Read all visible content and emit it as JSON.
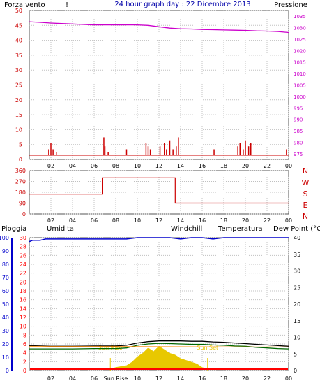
{
  "header": {
    "left_label": "Forza vento",
    "left_unit_mark": "!",
    "title": "24 hour graph day : 22 Dicembre 2013",
    "right_label": "Pressione"
  },
  "colors": {
    "wind": "#cc0000",
    "pressure": "#cc00cc",
    "direction": "#cc0000",
    "rain": "#ff0000",
    "humidity": "#0000cc",
    "windchill": "#ff8800",
    "temperature": "#000000",
    "dewpoint": "#006600",
    "sun": "#e8c800",
    "grid": "#c0c0c0",
    "border": "#555555",
    "axis_blue": "#0000cc"
  },
  "bottom_labels": {
    "rain": "Pioggia",
    "humidity": "Umidita",
    "windchill": "Windchill",
    "temperature": "Temperatura",
    "dewpoint": "Dew Point (°C"
  },
  "sun_labels": {
    "rise": "Sun Rise",
    "set": "Sun Set",
    "rise_axis": "Sun Rise"
  },
  "compass_labels": [
    "N",
    "W",
    "S",
    "E",
    "N"
  ],
  "chart_data": [
    {
      "type": "line",
      "name": "wind-pressure",
      "x_ticks": [
        "02",
        "04",
        "06",
        "08",
        "10",
        "12",
        "14",
        "16",
        "18",
        "20",
        "22",
        "00"
      ],
      "xlim": [
        0,
        24
      ],
      "y_left_ticks": [
        0,
        5,
        10,
        15,
        20,
        25,
        30,
        35,
        40,
        45,
        50
      ],
      "ylim_left": [
        0,
        50
      ],
      "y_right_ticks": [
        975,
        980,
        985,
        990,
        995,
        1000,
        1005,
        1010,
        1015,
        1020,
        1025,
        1030,
        1035
      ],
      "ylim_right": [
        972.5,
        1037.5
      ],
      "pressure": {
        "x": [
          0,
          1,
          2,
          3,
          4,
          5,
          6,
          7,
          8,
          9,
          10,
          11,
          12,
          13,
          14,
          15,
          16,
          17,
          18,
          19,
          20,
          21,
          22,
          23,
          24
        ],
        "y": [
          1032.6,
          1032.3,
          1032.0,
          1031.8,
          1031.6,
          1031.4,
          1031.2,
          1031.2,
          1031.2,
          1031.2,
          1031.2,
          1031.0,
          1030.4,
          1029.8,
          1029.5,
          1029.4,
          1029.2,
          1029.1,
          1029.0,
          1028.9,
          1028.8,
          1028.6,
          1028.5,
          1028.3,
          1027.9
        ]
      },
      "wind": {
        "x": [
          1.8,
          2.0,
          2.2,
          2.5,
          6.9,
          7.0,
          7.3,
          9.0,
          10.8,
          11.0,
          11.2,
          12.1,
          12.5,
          12.7,
          13.0,
          13.3,
          13.6,
          13.8,
          17.1,
          19.3,
          19.5,
          19.8,
          20.0,
          20.3,
          20.5,
          23.8
        ],
        "y": [
          2,
          4,
          2,
          1,
          6,
          3,
          1,
          2,
          4,
          3,
          2,
          3,
          4,
          2,
          5,
          2,
          3,
          6,
          2,
          3,
          4,
          2,
          5,
          3,
          4,
          2
        ]
      }
    },
    {
      "type": "line",
      "name": "wind-direction",
      "x_ticks": [
        "02",
        "04",
        "06",
        "08",
        "10",
        "12",
        "14",
        "16",
        "18",
        "20",
        "22",
        "00"
      ],
      "xlim": [
        0,
        24
      ],
      "y_ticks": [
        0,
        90,
        180,
        270,
        360
      ],
      "ylim": [
        0,
        360
      ],
      "x": [
        0,
        6.8,
        6.8,
        13.5,
        13.5,
        24
      ],
      "y": [
        165,
        165,
        300,
        300,
        90,
        90
      ]
    },
    {
      "type": "line",
      "name": "temp-humidity-rain",
      "x_ticks": [
        "02",
        "04",
        "06",
        "Sun Rise",
        "10",
        "12",
        "14",
        "16",
        "18",
        "20",
        "22",
        "00"
      ],
      "xlim": [
        0,
        24
      ],
      "y_left_ticks": [
        0,
        2,
        4,
        6,
        8,
        10,
        12,
        14,
        16,
        18,
        20,
        22,
        24,
        26,
        28,
        30
      ],
      "ylim_left": [
        0,
        30
      ],
      "y_humidity_ticks": [
        0,
        10,
        20,
        30,
        40,
        50,
        60,
        70,
        80,
        90,
        100
      ],
      "ylim_humidity": [
        0,
        100
      ],
      "y_right_ticks": [
        0,
        5,
        10,
        15,
        20,
        25,
        30,
        35,
        40
      ],
      "ylim_right": [
        0,
        40
      ],
      "sunrise": 7.5,
      "sunset": 16.5,
      "humidity": {
        "x": [
          0,
          0.3,
          1,
          1.5,
          2,
          3,
          4,
          5,
          6,
          7,
          8,
          9,
          10,
          11,
          12,
          13,
          14,
          15,
          16,
          17,
          18,
          19,
          20,
          21,
          22,
          23,
          24
        ],
        "y": [
          97,
          98,
          98,
          99,
          99,
          99,
          99,
          99,
          99,
          99,
          99,
          99,
          100,
          100,
          100,
          100,
          99,
          100,
          100,
          99,
          100,
          100,
          100,
          100,
          100,
          100,
          100
        ]
      },
      "temperature": {
        "x": [
          0,
          2,
          4,
          6,
          8,
          9,
          10,
          11,
          12,
          13,
          14,
          15,
          16,
          17,
          18,
          19,
          20,
          21,
          22,
          23,
          24
        ],
        "y": [
          7.5,
          7.3,
          7.3,
          7.4,
          7.4,
          7.6,
          8.3,
          8.7,
          8.9,
          8.9,
          8.9,
          8.8,
          8.8,
          8.6,
          8.5,
          8.3,
          8.1,
          7.9,
          7.7,
          7.5,
          7.3
        ]
      },
      "dewpoint": {
        "x": [
          0,
          2,
          4,
          6,
          8,
          9,
          10,
          11,
          12,
          13,
          14,
          15,
          16,
          17,
          18,
          19,
          20,
          21,
          22,
          23,
          24
        ],
        "y": [
          6.5,
          6.5,
          6.5,
          6.6,
          6.6,
          6.8,
          7.6,
          8.0,
          8.2,
          8.1,
          8.0,
          7.9,
          7.9,
          7.7,
          7.6,
          7.4,
          7.3,
          7.0,
          6.8,
          6.6,
          6.5
        ]
      },
      "windchill": {
        "x": [
          0,
          24
        ],
        "y": [
          7.3,
          7.1
        ]
      },
      "solar": {
        "x": [
          7.5,
          8,
          9,
          9.5,
          10,
          10.5,
          11,
          11.5,
          12,
          12.5,
          13,
          13.5,
          14,
          14.5,
          15,
          15.5,
          16,
          16.5
        ],
        "y": [
          0,
          0.1,
          0.2,
          0.4,
          0.7,
          0.9,
          1.2,
          1.0,
          1.3,
          1.1,
          0.9,
          0.8,
          0.6,
          0.5,
          0.4,
          0.3,
          0.1,
          0
        ]
      },
      "rain": {
        "x": [
          0,
          24
        ],
        "y": [
          0.3,
          0.3
        ]
      }
    }
  ]
}
